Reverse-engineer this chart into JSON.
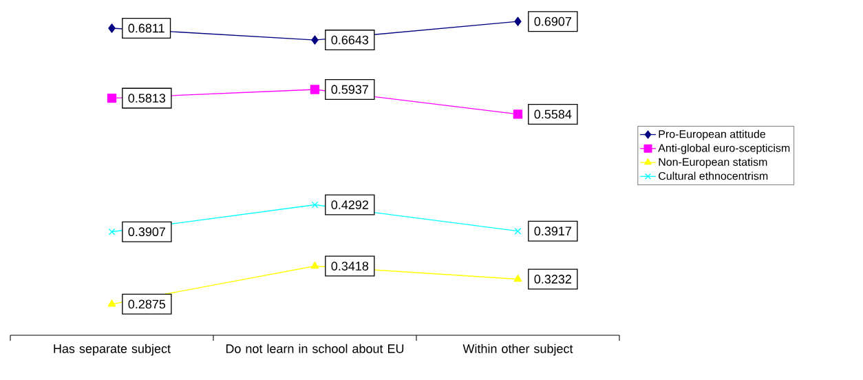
{
  "chart_data": {
    "type": "line",
    "categories": [
      "Has separate subject",
      "Do not learn in school about EU",
      "Within other subject"
    ],
    "series": [
      {
        "name": "Pro-European attitude",
        "color": "#000080",
        "marker": "diamond",
        "values": [
          0.6811,
          0.6643,
          0.6907
        ]
      },
      {
        "name": "Anti-global euro-scepticism",
        "color": "#ff00ff",
        "marker": "square",
        "values": [
          0.5813,
          0.5937,
          0.5584
        ]
      },
      {
        "name": "Non-European statism",
        "color": "#ffff00",
        "marker": "triangle",
        "values": [
          0.2875,
          0.3418,
          0.3232
        ]
      },
      {
        "name": "Cultural ethnocentrism",
        "color": "#00ffff",
        "marker": "cross",
        "values": [
          0.3907,
          0.4292,
          0.3917
        ]
      }
    ],
    "data_labels": true,
    "legend": "right",
    "tick_labels": "x"
  }
}
